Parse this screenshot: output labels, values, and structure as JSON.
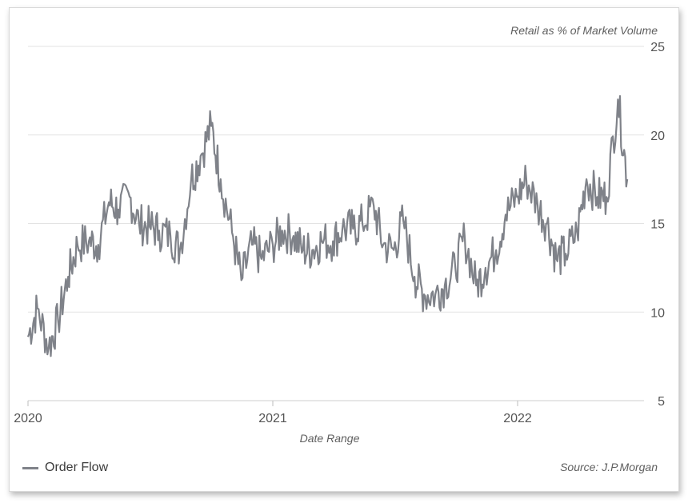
{
  "chart_data": {
    "type": "line",
    "ylabel": "Retail as % of Market Volume",
    "xlabel": "Date Range",
    "source": "Source: J.P.Morgan",
    "ylim": [
      5,
      25
    ],
    "yticks": [
      5,
      10,
      15,
      20,
      25
    ],
    "xticks": [
      "2020",
      "2021",
      "2022"
    ],
    "grid": true,
    "legend_position": "bottom-left",
    "series": [
      {
        "name": "Order Flow",
        "color": "#7f8289",
        "x": [
          "2020-01-01",
          "2020-01-15",
          "2020-02-01",
          "2020-02-15",
          "2020-03-01",
          "2020-03-15",
          "2020-04-01",
          "2020-04-15",
          "2020-05-01",
          "2020-05-15",
          "2020-06-01",
          "2020-06-15",
          "2020-07-01",
          "2020-07-15",
          "2020-08-01",
          "2020-08-15",
          "2020-09-01",
          "2020-09-15",
          "2020-10-01",
          "2020-10-15",
          "2020-11-01",
          "2020-11-15",
          "2020-12-01",
          "2020-12-15",
          "2021-01-01",
          "2021-01-15",
          "2021-02-01",
          "2021-02-15",
          "2021-03-01",
          "2021-03-15",
          "2021-04-01",
          "2021-04-15",
          "2021-05-01",
          "2021-05-15",
          "2021-06-01",
          "2021-06-15",
          "2021-07-01",
          "2021-07-15",
          "2021-08-01",
          "2021-08-15",
          "2021-09-01",
          "2021-09-15",
          "2021-10-01",
          "2021-10-15",
          "2021-11-01",
          "2021-11-15",
          "2021-12-01",
          "2021-12-15",
          "2022-01-01",
          "2022-01-15",
          "2022-02-01",
          "2022-02-15",
          "2022-03-01",
          "2022-03-15",
          "2022-04-01",
          "2022-04-15",
          "2022-05-01",
          "2022-05-15",
          "2022-06-01",
          "2022-06-15"
        ],
        "values": [
          8.6,
          10.2,
          8.0,
          9.5,
          12.0,
          13.8,
          14.0,
          13.8,
          16.2,
          15.8,
          16.5,
          15.0,
          14.8,
          14.6,
          14.3,
          13.5,
          17.5,
          18.8,
          20.5,
          17.5,
          14.5,
          11.8,
          13.8,
          13.0,
          13.8,
          14.6,
          14.3,
          13.5,
          13.5,
          14.0,
          14.0,
          14.7,
          14.7,
          15.0,
          16.0,
          13.8,
          13.5,
          15.2,
          12.0,
          11.0,
          11.0,
          11.5,
          12.5,
          14.2,
          11.5,
          12.5,
          13.5,
          15.5,
          16.5,
          17.5,
          16.0,
          15.0,
          13.0,
          13.3,
          14.5,
          17.5,
          16.5,
          16.5,
          22.0,
          17.5
        ]
      }
    ]
  }
}
